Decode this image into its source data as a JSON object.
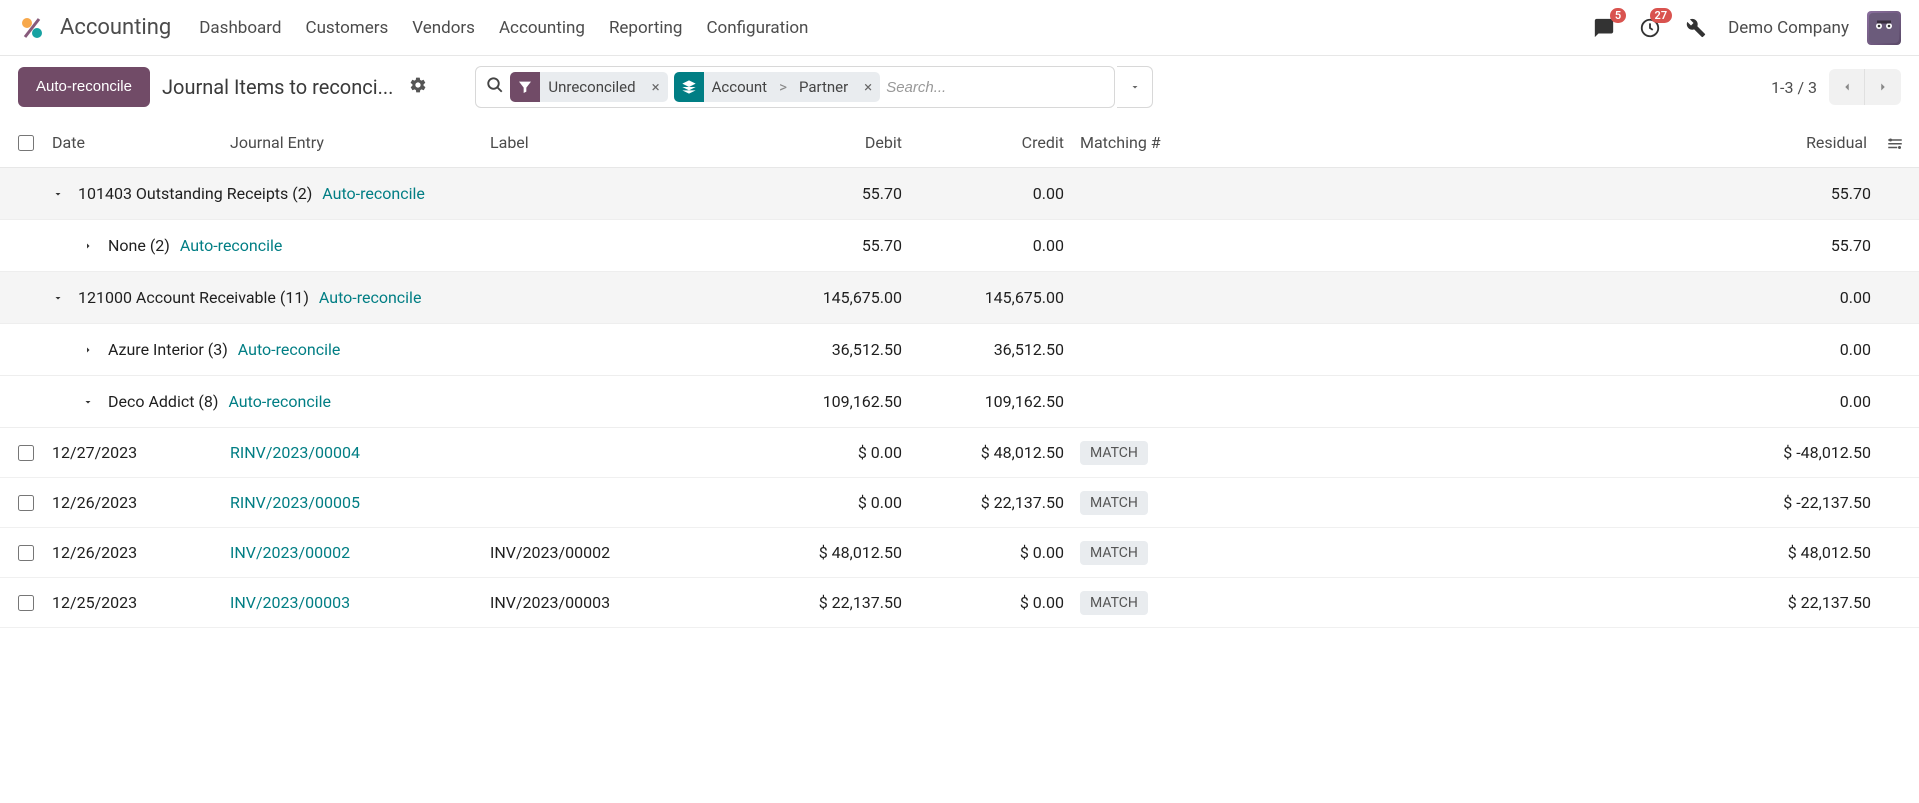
{
  "colors": {
    "primary": "#714b67",
    "teal": "#017e84",
    "badge": "#d9534f"
  },
  "header": {
    "app_title": "Accounting",
    "nav": [
      "Dashboard",
      "Customers",
      "Vendors",
      "Accounting",
      "Reporting",
      "Configuration"
    ],
    "messages_badge": "5",
    "activities_badge": "27",
    "company": "Demo Company"
  },
  "controls": {
    "auto_reconcile_btn": "Auto-reconcile",
    "breadcrumb": "Journal Items to reconci...",
    "filter_chip": "Unreconciled",
    "group_chip_a": "Account",
    "group_chip_b": "Partner",
    "search_placeholder": "Search...",
    "pager": "1-3 / 3"
  },
  "columns": {
    "date": "Date",
    "journal_entry": "Journal Entry",
    "label": "Label",
    "debit": "Debit",
    "credit": "Credit",
    "matching": "Matching #",
    "residual": "Residual"
  },
  "auto_reconcile_link": "Auto-reconcile",
  "match_label": "MATCH",
  "groups": [
    {
      "level": 0,
      "expanded": true,
      "label": "101403 Outstanding Receipts (2)",
      "debit": "55.70",
      "credit": "0.00",
      "residual": "55.70",
      "children": [
        {
          "level": 1,
          "expanded": false,
          "label": "None (2)",
          "debit": "55.70",
          "credit": "0.00",
          "residual": "55.70",
          "rows": []
        }
      ]
    },
    {
      "level": 0,
      "expanded": true,
      "label": "121000 Account Receivable (11)",
      "debit": "145,675.00",
      "credit": "145,675.00",
      "residual": "0.00",
      "children": [
        {
          "level": 1,
          "expanded": false,
          "label": "Azure Interior (3)",
          "debit": "36,512.50",
          "credit": "36,512.50",
          "residual": "0.00",
          "rows": []
        },
        {
          "level": 1,
          "expanded": true,
          "label": "Deco Addict (8)",
          "debit": "109,162.50",
          "credit": "109,162.50",
          "residual": "0.00",
          "rows": [
            {
              "date": "12/27/2023",
              "je": "RINV/2023/00004",
              "label": "",
              "debit": "$ 0.00",
              "credit": "$ 48,012.50",
              "residual": "$ -48,012.50"
            },
            {
              "date": "12/26/2023",
              "je": "RINV/2023/00005",
              "label": "",
              "debit": "$ 0.00",
              "credit": "$ 22,137.50",
              "residual": "$ -22,137.50"
            },
            {
              "date": "12/26/2023",
              "je": "INV/2023/00002",
              "label": "INV/2023/00002",
              "debit": "$ 48,012.50",
              "credit": "$ 0.00",
              "residual": "$ 48,012.50"
            },
            {
              "date": "12/25/2023",
              "je": "INV/2023/00003",
              "label": "INV/2023/00003",
              "debit": "$ 22,137.50",
              "credit": "$ 0.00",
              "residual": "$ 22,137.50"
            }
          ]
        }
      ]
    }
  ]
}
